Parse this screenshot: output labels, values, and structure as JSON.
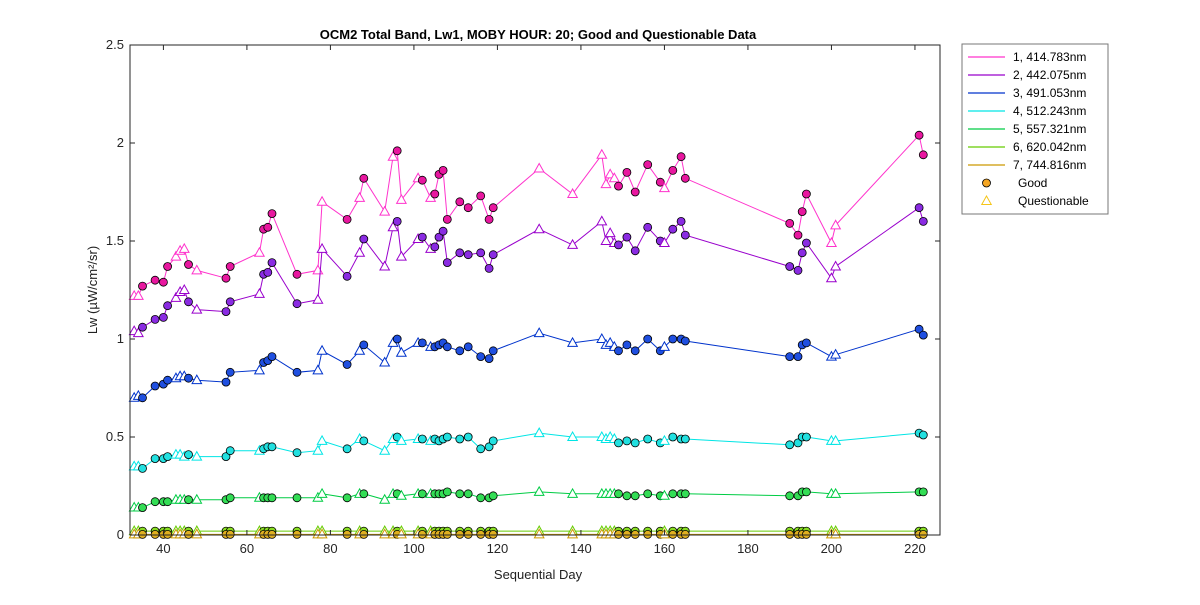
{
  "chart_data": {
    "type": "line",
    "title": "OCM2 Total Band,  Lw1, MOBY HOUR: 20;  Good and Questionable Data",
    "xlabel": "Sequential Day",
    "ylabel": "Lw (µW/cm²/sr)",
    "xlim": [
      32,
      226
    ],
    "ylim": [
      0,
      2.5
    ],
    "xticks": [
      40,
      60,
      80,
      100,
      120,
      140,
      160,
      180,
      200,
      220
    ],
    "yticks": [
      0,
      0.5,
      1,
      1.5,
      2,
      2.5
    ],
    "ytick_labels": [
      "0",
      "0.5",
      "1",
      "1.5",
      "2",
      "2.5"
    ],
    "grid": false,
    "legend": {
      "placement": "outside-top-right",
      "good_label": "Good",
      "questionable_label": "Questionable"
    },
    "marker_colors": {
      "good_fill_legend": "#f5a623",
      "questionable_stroke_legend": "#f5c518"
    },
    "x": [
      33,
      34,
      35,
      38,
      40,
      41,
      43,
      44,
      45,
      46,
      48,
      55,
      56,
      63,
      64,
      65,
      66,
      72,
      77,
      78,
      84,
      87,
      88,
      93,
      95,
      96,
      97,
      101,
      102,
      104,
      105,
      106,
      107,
      108,
      111,
      113,
      116,
      118,
      119,
      130,
      138,
      145,
      146,
      147,
      148,
      149,
      151,
      153,
      156,
      159,
      160,
      162,
      164,
      165,
      190,
      192,
      193,
      194,
      200,
      201,
      221,
      222
    ],
    "good": [
      false,
      false,
      true,
      true,
      true,
      true,
      false,
      false,
      false,
      true,
      false,
      true,
      true,
      false,
      true,
      true,
      true,
      true,
      false,
      false,
      true,
      false,
      true,
      false,
      false,
      true,
      false,
      false,
      true,
      false,
      true,
      true,
      true,
      true,
      true,
      true,
      true,
      true,
      true,
      false,
      false,
      false,
      false,
      false,
      false,
      true,
      true,
      true,
      true,
      true,
      false,
      true,
      true,
      true,
      true,
      true,
      true,
      true,
      false,
      false,
      true,
      true
    ],
    "series": [
      {
        "name": "1, 414.783nm",
        "color": "#ff33cc",
        "marker_fill": "#e8179f",
        "values": [
          1.22,
          1.22,
          1.27,
          1.3,
          1.29,
          1.37,
          1.42,
          1.45,
          1.46,
          1.38,
          1.35,
          1.31,
          1.37,
          1.44,
          1.56,
          1.57,
          1.64,
          1.33,
          1.35,
          1.7,
          1.61,
          1.72,
          1.82,
          1.65,
          1.93,
          1.96,
          1.71,
          1.82,
          1.81,
          1.72,
          1.74,
          1.84,
          1.86,
          1.61,
          1.7,
          1.67,
          1.73,
          1.61,
          1.67,
          1.87,
          1.74,
          1.94,
          1.79,
          1.84,
          1.82,
          1.78,
          1.85,
          1.75,
          1.89,
          1.8,
          1.77,
          1.86,
          1.93,
          1.82,
          1.59,
          1.53,
          1.65,
          1.74,
          1.49,
          1.58,
          2.04,
          1.94
        ]
      },
      {
        "name": "2, 442.075nm",
        "color": "#9900cc",
        "marker_fill": "#8a2be2",
        "values": [
          1.04,
          1.03,
          1.06,
          1.1,
          1.11,
          1.17,
          1.21,
          1.24,
          1.25,
          1.19,
          1.15,
          1.14,
          1.19,
          1.23,
          1.33,
          1.34,
          1.39,
          1.18,
          1.2,
          1.46,
          1.32,
          1.44,
          1.51,
          1.37,
          1.57,
          1.6,
          1.42,
          1.51,
          1.52,
          1.46,
          1.47,
          1.52,
          1.55,
          1.39,
          1.44,
          1.43,
          1.44,
          1.36,
          1.43,
          1.56,
          1.48,
          1.6,
          1.5,
          1.54,
          1.49,
          1.48,
          1.52,
          1.45,
          1.57,
          1.5,
          1.49,
          1.56,
          1.6,
          1.53,
          1.37,
          1.35,
          1.44,
          1.49,
          1.31,
          1.37,
          1.67,
          1.6
        ]
      },
      {
        "name": "3, 491.053nm",
        "color": "#0033cc",
        "marker_fill": "#1f4fe0",
        "values": [
          0.7,
          0.71,
          0.7,
          0.76,
          0.77,
          0.79,
          0.8,
          0.81,
          0.81,
          0.8,
          0.79,
          0.78,
          0.83,
          0.84,
          0.88,
          0.89,
          0.91,
          0.83,
          0.84,
          0.94,
          0.87,
          0.94,
          0.97,
          0.88,
          0.98,
          1.0,
          0.93,
          0.98,
          0.98,
          0.96,
          0.96,
          0.97,
          0.98,
          0.96,
          0.94,
          0.96,
          0.91,
          0.9,
          0.94,
          1.03,
          0.98,
          1.0,
          0.97,
          0.98,
          0.96,
          0.94,
          0.97,
          0.94,
          1.0,
          0.94,
          0.96,
          1.0,
          1.0,
          0.99,
          0.91,
          0.91,
          0.97,
          0.98,
          0.91,
          0.92,
          1.05,
          1.02
        ]
      },
      {
        "name": "4, 512.243nm",
        "color": "#00e5e5",
        "marker_fill": "#22e0e0",
        "values": [
          0.35,
          0.35,
          0.34,
          0.39,
          0.39,
          0.4,
          0.41,
          0.41,
          0.4,
          0.41,
          0.4,
          0.4,
          0.43,
          0.43,
          0.44,
          0.45,
          0.45,
          0.42,
          0.43,
          0.48,
          0.44,
          0.49,
          0.48,
          0.43,
          0.49,
          0.5,
          0.48,
          0.49,
          0.49,
          0.48,
          0.49,
          0.48,
          0.49,
          0.5,
          0.49,
          0.5,
          0.44,
          0.45,
          0.48,
          0.52,
          0.5,
          0.5,
          0.49,
          0.5,
          0.49,
          0.47,
          0.48,
          0.47,
          0.49,
          0.47,
          0.48,
          0.5,
          0.49,
          0.49,
          0.46,
          0.47,
          0.5,
          0.5,
          0.48,
          0.48,
          0.52,
          0.51
        ]
      },
      {
        "name": "5, 557.321nm",
        "color": "#00cc44",
        "marker_fill": "#33dd55",
        "values": [
          0.14,
          0.14,
          0.14,
          0.17,
          0.17,
          0.17,
          0.18,
          0.18,
          0.18,
          0.18,
          0.18,
          0.18,
          0.19,
          0.19,
          0.19,
          0.19,
          0.19,
          0.19,
          0.19,
          0.21,
          0.19,
          0.21,
          0.21,
          0.18,
          0.21,
          0.21,
          0.2,
          0.21,
          0.21,
          0.21,
          0.21,
          0.21,
          0.21,
          0.22,
          0.21,
          0.21,
          0.19,
          0.19,
          0.2,
          0.22,
          0.21,
          0.21,
          0.21,
          0.21,
          0.21,
          0.21,
          0.2,
          0.2,
          0.21,
          0.2,
          0.2,
          0.21,
          0.21,
          0.21,
          0.2,
          0.2,
          0.22,
          0.22,
          0.21,
          0.21,
          0.22,
          0.22
        ]
      },
      {
        "name": "6, 620.042nm",
        "color": "#66cc00",
        "marker_fill": "#88dd22",
        "values": [
          0.02,
          0.02,
          0.02,
          0.02,
          0.02,
          0.02,
          0.02,
          0.02,
          0.02,
          0.02,
          0.02,
          0.02,
          0.02,
          0.02,
          0.02,
          0.02,
          0.02,
          0.02,
          0.02,
          0.02,
          0.02,
          0.02,
          0.02,
          0.02,
          0.02,
          0.02,
          0.02,
          0.02,
          0.02,
          0.02,
          0.02,
          0.02,
          0.02,
          0.02,
          0.02,
          0.02,
          0.02,
          0.02,
          0.02,
          0.02,
          0.02,
          0.02,
          0.02,
          0.02,
          0.02,
          0.02,
          0.02,
          0.02,
          0.02,
          0.02,
          0.02,
          0.02,
          0.02,
          0.02,
          0.02,
          0.02,
          0.02,
          0.02,
          0.02,
          0.02,
          0.02,
          0.02
        ]
      },
      {
        "name": "7, 744.816nm",
        "color": "#cc9900",
        "marker_fill": "#e0b020",
        "values": [
          0.003,
          0.003,
          0.003,
          0.003,
          0.003,
          0.003,
          0.003,
          0.003,
          0.003,
          0.003,
          0.003,
          0.003,
          0.003,
          0.003,
          0.003,
          0.003,
          0.003,
          0.003,
          0.003,
          0.003,
          0.003,
          0.003,
          0.003,
          0.003,
          0.003,
          0.003,
          0.003,
          0.003,
          0.003,
          0.003,
          0.003,
          0.003,
          0.003,
          0.003,
          0.003,
          0.003,
          0.003,
          0.003,
          0.003,
          0.003,
          0.003,
          0.003,
          0.003,
          0.003,
          0.003,
          0.003,
          0.003,
          0.003,
          0.003,
          0.003,
          0.003,
          0.003,
          0.003,
          0.003,
          0.003,
          0.003,
          0.003,
          0.003,
          0.003,
          0.003,
          0.003,
          0.003
        ]
      }
    ]
  }
}
